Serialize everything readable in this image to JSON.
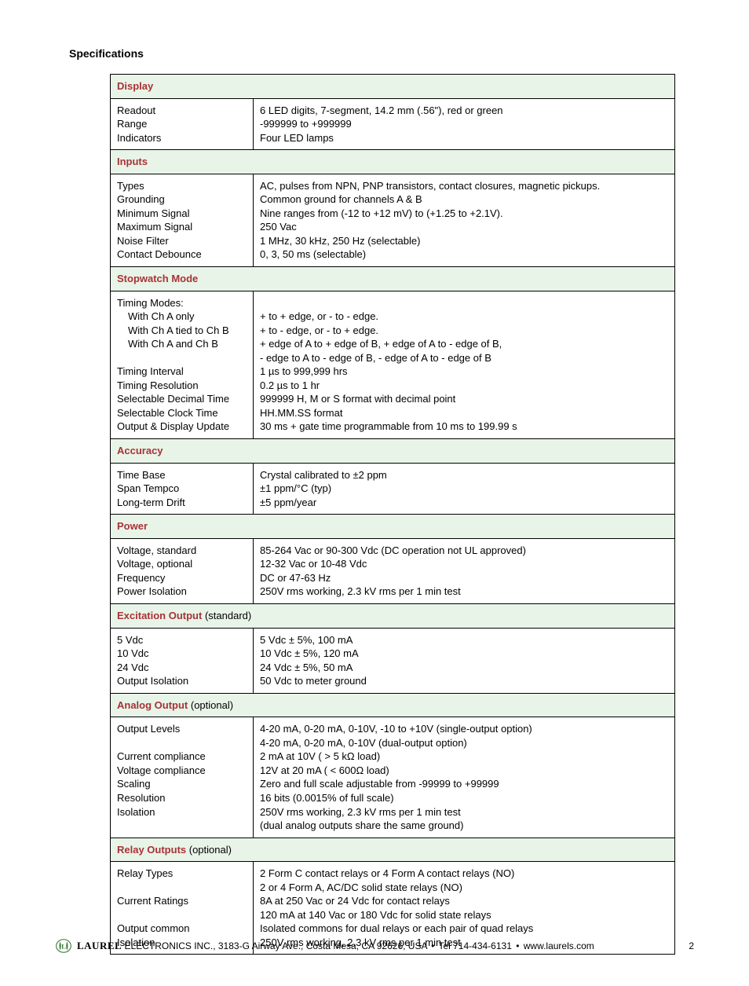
{
  "title": "Specifications",
  "sections": [
    {
      "header": "Display",
      "header_paren": "",
      "labels": [
        "Readout",
        "Range",
        "Indicators"
      ],
      "values": [
        "6 LED digits, 7-segment, 14.2 mm (.56\"), red or green",
        "-999999 to +999999",
        "Four LED lamps"
      ]
    },
    {
      "header": "Inputs",
      "header_paren": "",
      "labels": [
        "Types",
        "Grounding",
        "Minimum Signal",
        "Maximum Signal",
        "Noise Filter",
        "Contact Debounce"
      ],
      "values": [
        "AC, pulses from NPN, PNP transistors, contact closures, magnetic pickups.",
        "Common ground for channels A & B",
        "Nine ranges from (-12 to +12 mV) to (+1.25 to +2.1V).",
        "250 Vac",
        "1 MHz, 30 kHz, 250 Hz (selectable)",
        "0, 3, 50 ms (selectable)"
      ]
    },
    {
      "header": "Stopwatch Mode",
      "header_paren": "",
      "labels_raw": [
        {
          "text": "Timing Modes:",
          "indent": 0
        },
        {
          "text": "With Ch A only",
          "indent": 1
        },
        {
          "text": "With Ch A tied to Ch B",
          "indent": 1
        },
        {
          "text": "With Ch A and Ch B",
          "indent": 1
        },
        {
          "text": "",
          "indent": 0
        },
        {
          "text": "Timing Interval",
          "indent": 0
        },
        {
          "text": "Timing Resolution",
          "indent": 0
        },
        {
          "text": "Selectable Decimal Time",
          "indent": 0
        },
        {
          "text": "Selectable Clock Time",
          "indent": 0
        },
        {
          "text": "Output & Display Update",
          "indent": 0
        }
      ],
      "values": [
        "",
        "+ to + edge, or - to - edge.",
        "+ to - edge, or - to + edge.",
        "+ edge of A to + edge of B, + edge of A to - edge of B,",
        "- edge to A to - edge of B, - edge of A to - edge of B",
        "1 µs to 999,999 hrs",
        "0.2 µs to 1 hr",
        "999999 H, M or S format with decimal point",
        "HH.MM.SS format",
        "30 ms + gate time programmable from 10 ms to 199.99 s"
      ]
    },
    {
      "header": "Accuracy",
      "header_paren": "",
      "labels": [
        "Time Base",
        "Span Tempco",
        "Long-term Drift"
      ],
      "values": [
        "Crystal calibrated to ±2 ppm",
        "±1 ppm/°C (typ)",
        "±5 ppm/year"
      ]
    },
    {
      "header": "Power",
      "header_paren": "",
      "labels": [
        "Voltage, standard",
        "Voltage, optional",
        "Frequency",
        "Power Isolation"
      ],
      "values": [
        "85-264 Vac or 90-300 Vdc (DC operation not UL approved)",
        "12-32 Vac or 10-48 Vdc",
        "DC or 47-63 Hz",
        "250V rms working, 2.3 kV rms per 1 min test"
      ]
    },
    {
      "header": "Excitation Output",
      "header_paren": " (standard)",
      "labels": [
        "5 Vdc",
        "10 Vdc",
        "24 Vdc",
        "Output Isolation"
      ],
      "values": [
        "5 Vdc ± 5%, 100 mA",
        "10 Vdc ± 5%, 120 mA",
        "24 Vdc ± 5%, 50 mA",
        "50 Vdc to meter ground"
      ]
    },
    {
      "header": "Analog Output",
      "header_paren": " (optional)",
      "labels": [
        "Output Levels",
        "",
        "Current compliance",
        "Voltage compliance",
        "Scaling",
        "Resolution",
        "Isolation",
        ""
      ],
      "values": [
        "4-20 mA, 0-20 mA, 0-10V, -10 to +10V (single-output option)",
        "4-20 mA, 0-20 mA, 0-10V (dual-output option)",
        "2 mA at 10V ( > 5 kΩ load)",
        "12V at 20 mA ( < 600Ω load)",
        "Zero and full scale adjustable from -99999 to +99999",
        "16 bits (0.0015% of full scale)",
        "250V rms working, 2.3 kV rms per 1 min test",
        "(dual analog outputs share the same ground)"
      ]
    },
    {
      "header": "Relay Outputs",
      "header_paren": " (optional)",
      "labels": [
        "Relay Types",
        "",
        "Current Ratings",
        "",
        "Output common",
        "Isolation"
      ],
      "values": [
        "2 Form C contact relays or 4 Form A contact relays (NO)",
        "2 or 4 Form A, AC/DC solid state relays (NO)",
        "8A at 250 Vac or 24 Vdc for contact relays",
        "120 mA at 140 Vac or 180 Vdc for solid state relays",
        "Isolated commons for dual relays or each pair of quad relays",
        "250V rms working, 2.3 kV rms per 1 min test"
      ]
    }
  ],
  "footer": {
    "brand": "LAUREL",
    "rest": " ELECTRONICS INC., 3183-G Airway Ave., Costa Mesa, CA 92626, USA ",
    "tel": " Tel 714-434-6131 ",
    "url": " www.laurels.com",
    "page": "2"
  },
  "colors": {
    "header_bg": "#e8f4e8",
    "header_text": "#a83236",
    "border": "#000000",
    "logo_stroke": "#3a7a3a"
  }
}
